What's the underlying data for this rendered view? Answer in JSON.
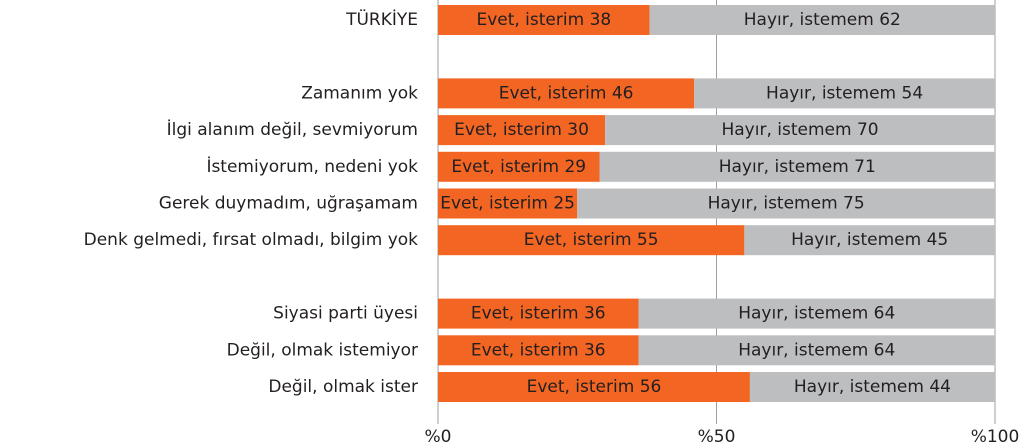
{
  "chart_data": {
    "type": "stacked-barh",
    "categories": [
      "TÜRKİYE",
      null,
      "Zamanım yok",
      "İlgi alanım değil, sevmiyorum",
      "İstemiyorum, nedeni yok",
      "Gerek duymadım, uğraşamam",
      "Denk gelmedi, fırsat olmadı, bilgim yok",
      null,
      "Siyasi parti üyesi",
      "Değil, olmak istemiyor",
      "Değil, olmak ister"
    ],
    "series": [
      {
        "color": "#f26522",
        "values": [
          38,
          null,
          46,
          30,
          29,
          25,
          55,
          null,
          36,
          36,
          56
        ],
        "value_labels": [
          "Evet, isterim 38",
          null,
          "Evet, isterim 46",
          "Evet, isterim 30",
          "Evet, isterim 29",
          "Evet, isterim 25",
          "Evet, isterim 55",
          null,
          "Evet, isterim 36",
          "Evet, isterim 36",
          "Evet, isterim 56"
        ]
      },
      {
        "color": "#bcbec0",
        "values": [
          62,
          null,
          54,
          70,
          71,
          75,
          45,
          null,
          64,
          64,
          44
        ],
        "value_labels": [
          "Hayır, istemem 62",
          null,
          "Hayır, istemem 54",
          "Hayır, istemem 70",
          "Hayır, istemem 71",
          "Hayır, istemem 75",
          "Hayır, istemem 45",
          null,
          "Hayır, istemem 64",
          "Hayır, istemem 64",
          "Hayır, istemem 44"
        ]
      }
    ],
    "xlim": [
      0,
      100
    ],
    "xticks": [
      {
        "value": 0,
        "label": "%0"
      },
      {
        "value": 50,
        "label": "%50"
      },
      {
        "value": 100,
        "label": "%100"
      }
    ],
    "grid": true
  }
}
